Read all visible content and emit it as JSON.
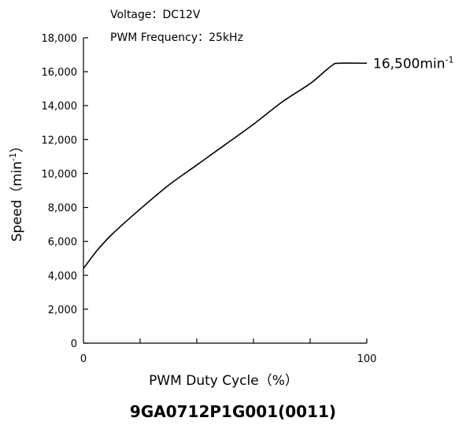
{
  "chart_data": {
    "type": "line",
    "conditions": [
      "Voltage：DC12V",
      "PWM Frequency：25kHz"
    ],
    "xlabel": "PWM Duty Cycle（%）",
    "ylabel_main": "Speed（min",
    "ylabel_sup": "-1",
    "ylabel_close": "）",
    "xlim": [
      0,
      100
    ],
    "ylim": [
      0,
      18000
    ],
    "x_tick_labels": [
      {
        "value": 0,
        "label": "0"
      },
      {
        "value": 100,
        "label": "100"
      }
    ],
    "x_minor_ticks": [
      20,
      40,
      60,
      80
    ],
    "y_ticks": [
      {
        "value": 0,
        "label": "0"
      },
      {
        "value": 2000,
        "label": "2,000"
      },
      {
        "value": 4000,
        "label": "4,000"
      },
      {
        "value": 6000,
        "label": "6,000"
      },
      {
        "value": 8000,
        "label": "8,000"
      },
      {
        "value": 10000,
        "label": "10,000"
      },
      {
        "value": 12000,
        "label": "12,000"
      },
      {
        "value": 14000,
        "label": "14,000"
      },
      {
        "value": 16000,
        "label": "16,000"
      },
      {
        "value": 18000,
        "label": "18,000"
      }
    ],
    "series": [
      {
        "x": [
          0,
          5,
          10,
          20,
          30,
          40,
          50,
          60,
          70,
          80,
          85,
          88,
          90,
          100
        ],
        "y": [
          4400,
          5500,
          6400,
          7900,
          9300,
          10500,
          11700,
          12900,
          14200,
          15300,
          16000,
          16400,
          16500,
          16500
        ]
      }
    ],
    "annotation": {
      "value_text": "16,500min",
      "sup": "-1",
      "y": 16500
    },
    "grid": false
  },
  "model_label": "9GA0712P1G001(0011)"
}
